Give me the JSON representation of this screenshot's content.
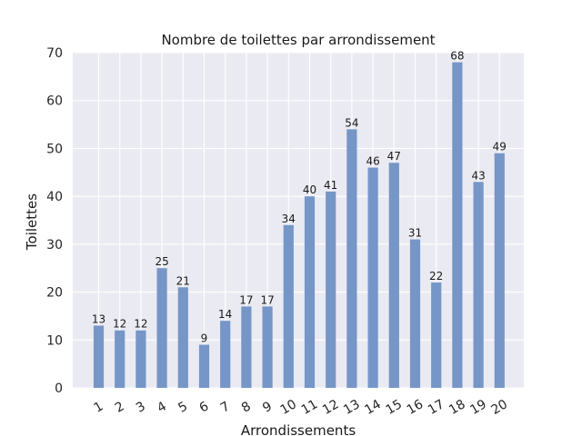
{
  "chart_data": {
    "type": "bar",
    "title": "Nombre de toilettes par arrondissement",
    "xlabel": "Arrondissements",
    "ylabel": "Toilettes",
    "categories": [
      "1",
      "2",
      "3",
      "4",
      "5",
      "6",
      "7",
      "8",
      "9",
      "10",
      "11",
      "12",
      "13",
      "14",
      "15",
      "16",
      "17",
      "18",
      "19",
      "20"
    ],
    "values": [
      13,
      12,
      12,
      25,
      21,
      9,
      14,
      17,
      17,
      34,
      40,
      41,
      54,
      46,
      47,
      31,
      22,
      68,
      43,
      49
    ],
    "value_labels": [
      "13",
      "12",
      "12",
      "25",
      "21",
      "9",
      "14",
      "17",
      "17",
      "34",
      "40",
      "41",
      "54",
      "46",
      "47",
      "31",
      "22",
      "68",
      "43",
      "49"
    ],
    "ylim": [
      0,
      70
    ],
    "yticks": [
      "0",
      "10",
      "20",
      "30",
      "40",
      "50",
      "60",
      "70"
    ],
    "grid": true,
    "bar_color": "#7696c7",
    "background_color": "#eaeaf2",
    "grid_color": "#ffffff"
  }
}
